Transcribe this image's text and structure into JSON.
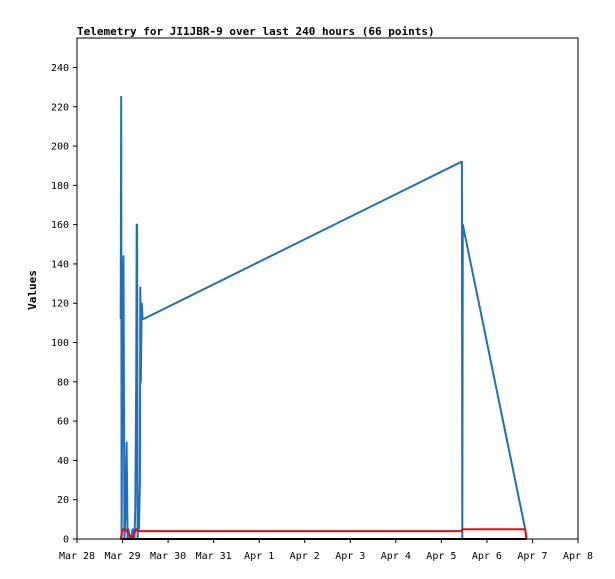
{
  "chart_data": {
    "type": "line",
    "title": "Telemetry for JI1JBR-9 over last 240 hours (66 points)",
    "ylabel": "Values",
    "xlabel": "",
    "ylim": [
      0,
      255
    ],
    "y_ticks": [
      0,
      20,
      40,
      60,
      80,
      100,
      120,
      140,
      160,
      180,
      200,
      220,
      240
    ],
    "x_ticks": [
      "Mar 28",
      "Mar 29",
      "Mar 30",
      "Mar 31",
      "Apr 1",
      "Apr 2",
      "Apr 3",
      "Apr 4",
      "Apr 5",
      "Apr 6",
      "Apr 7",
      "Apr 8"
    ],
    "x_unit": "days (0 = Mar 28, 11 = Apr 8)",
    "xlim": [
      0,
      11
    ],
    "grid": false,
    "series": [
      {
        "color": "#1f6fbf",
        "x": [
          0.96,
          0.97,
          0.98,
          1.0,
          1.02,
          1.04,
          1.06,
          1.09,
          1.11,
          1.13,
          1.16,
          1.19,
          1.22,
          1.26,
          1.28,
          1.3,
          1.31,
          1.32,
          1.33,
          1.34,
          1.35,
          1.36,
          1.38,
          1.39,
          1.4,
          1.42,
          1.44,
          1.45,
          1.46,
          8.44,
          8.45,
          8.46,
          8.47,
          9.84,
          9.87
        ],
        "y": [
          112,
          225,
          0,
          112,
          144,
          0,
          10,
          49,
          0,
          5,
          0,
          0,
          5,
          0,
          16,
          80,
          160,
          160,
          0,
          5,
          20,
          5,
          29,
          128,
          80,
          120,
          112,
          112,
          112,
          192,
          192,
          0,
          160,
          5,
          0
        ]
      },
      {
        "color": "#e01010",
        "x": [
          0.96,
          1.0,
          1.06,
          1.22,
          1.26,
          1.3,
          1.35,
          1.4,
          1.46,
          8.44,
          8.46,
          9.84,
          9.87
        ],
        "y": [
          0,
          5,
          5,
          0,
          3,
          5,
          4,
          4,
          4,
          4,
          5,
          5,
          0
        ]
      },
      {
        "color": "#000000",
        "x": [
          0.96,
          1.06,
          1.12,
          1.22,
          1.3,
          1.36,
          9.87
        ],
        "y": [
          0,
          0,
          0,
          0,
          0,
          0,
          0
        ]
      }
    ]
  }
}
